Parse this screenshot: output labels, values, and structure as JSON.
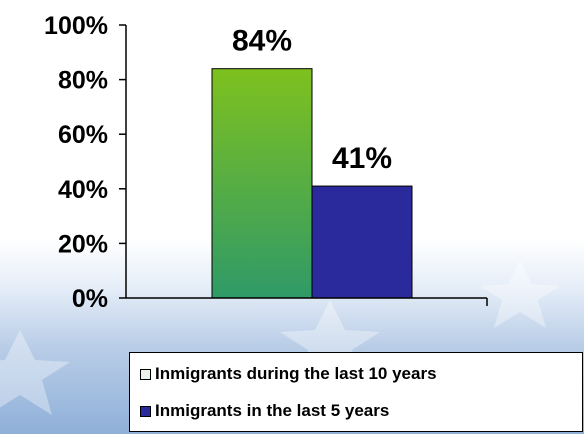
{
  "chart_data": {
    "type": "bar",
    "categories": [
      ""
    ],
    "series": [
      {
        "name": "Inmigrants during the last 10 years",
        "values": [
          84
        ],
        "data_label": "84%",
        "color": "#7ec11e",
        "color_bottom": "#2f9a68"
      },
      {
        "name": "Inmigrants in the last 5 years",
        "values": [
          41
        ],
        "data_label": "41%",
        "color": "#2a2a9c"
      }
    ],
    "title": "",
    "xlabel": "",
    "ylabel": "",
    "ylim": [
      0,
      100
    ],
    "yticks": [
      "0%",
      "20%",
      "40%",
      "60%",
      "80%",
      "100%"
    ],
    "grid": false,
    "legend_position": "bottom-right",
    "legend_swatch_1": "#e8f2ea",
    "legend_swatch_2": "#2a2a9c"
  }
}
